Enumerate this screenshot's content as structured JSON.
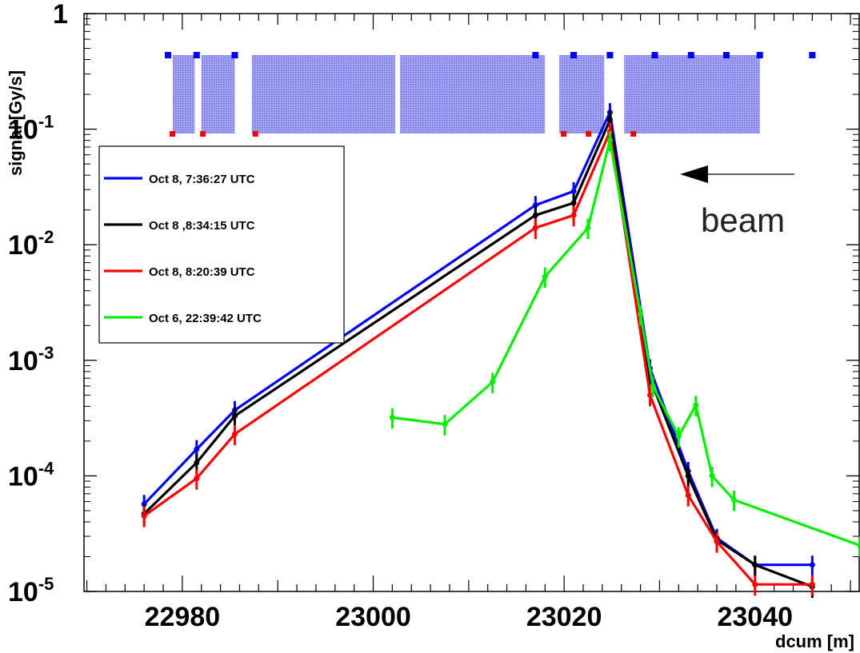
{
  "chart_data": {
    "type": "line",
    "xlabel": "dcum [m]",
    "ylabel": "signal [Gy/s]",
    "x_ticks": [
      "22980",
      "23000",
      "23020",
      "23040"
    ],
    "xlim": [
      22969.7,
      23051
    ],
    "ylim": [
      1e-05,
      1
    ],
    "y_scale": "log",
    "y_ticks": [
      {
        "base": "1",
        "exp": ""
      },
      {
        "base": "10",
        "exp": "-1"
      },
      {
        "base": "10",
        "exp": "-2"
      },
      {
        "base": "10",
        "exp": "-3"
      },
      {
        "base": "10",
        "exp": "-4"
      },
      {
        "base": "10",
        "exp": "-5"
      }
    ],
    "annotation": "beam",
    "legend_position": "left",
    "series": [
      {
        "name": "Oct 8, 7:36:27 UTC",
        "color": "#0000ff",
        "points": [
          [
            22976,
            5.7e-05
          ],
          [
            22981.5,
            0.00017
          ],
          [
            22985.5,
            0.00037
          ],
          [
            23017,
            0.022
          ],
          [
            23021,
            0.029
          ],
          [
            23024.8,
            0.14
          ],
          [
            23029,
            0.00085
          ],
          [
            23033,
            0.00011
          ],
          [
            23036,
            2.9e-05
          ],
          [
            23040,
            1.7e-05
          ],
          [
            23046,
            1.7e-05
          ]
        ]
      },
      {
        "name": "Oct 8 ,8:34:15 UTC",
        "color": "#000000",
        "points": [
          [
            22976,
            4.7e-05
          ],
          [
            22981.5,
            0.00013
          ],
          [
            22985.5,
            0.00033
          ],
          [
            23017,
            0.018
          ],
          [
            23021,
            0.023
          ],
          [
            23024.8,
            0.12
          ],
          [
            23029,
            0.0007
          ],
          [
            23033,
            0.0001
          ],
          [
            23036,
            2.8e-05
          ],
          [
            23040,
            1.7e-05
          ],
          [
            23046,
            1.1e-05
          ]
        ]
      },
      {
        "name": "Oct 8, 8:20:39 UTC",
        "color": "#ff0000",
        "points": [
          [
            22976,
            4.5e-05
          ],
          [
            22981.5,
            9.5e-05
          ],
          [
            22985.5,
            0.00023
          ],
          [
            23017,
            0.014
          ],
          [
            23021,
            0.018
          ],
          [
            23024.8,
            0.095
          ],
          [
            23029,
            0.0005
          ],
          [
            23033,
            6.8e-05
          ],
          [
            23036,
            2.7e-05
          ],
          [
            23040,
            1.15e-05
          ],
          [
            23046,
            1.15e-05
          ]
        ]
      },
      {
        "name": "Oct 6, 22:39:42 UTC",
        "color": "#00ee00",
        "points": [
          [
            23002,
            0.00032
          ],
          [
            23007.5,
            0.00028
          ],
          [
            23012.5,
            0.00065
          ],
          [
            23018,
            0.0053
          ],
          [
            23022.5,
            0.014
          ],
          [
            23024.8,
            0.08
          ],
          [
            23028,
            0.0025
          ],
          [
            23029.3,
            0.0006
          ],
          [
            23032,
            0.00022
          ],
          [
            23033.8,
            0.00041
          ],
          [
            23035.5,
            0.0001
          ],
          [
            23037.8,
            6.2e-05
          ],
          [
            23051,
            2.5e-05
          ]
        ]
      }
    ],
    "blue_markers_x": [
      22978.5,
      22981.5,
      22985.5,
      23017,
      23021,
      23024.8,
      23029.5,
      23033.3,
      23037,
      23040.5,
      23046
    ],
    "red_markers_x": [
      22979,
      22982.2,
      22987.7,
      23020,
      23022.6,
      23027.3
    ],
    "hatched_blocks_x": [
      [
        22979,
        22981.3
      ],
      [
        22982,
        22985.5
      ],
      [
        22987.3,
        23002.3
      ],
      [
        23002.8,
        23018
      ],
      [
        23019.5,
        23024.2
      ],
      [
        23026.3,
        23040.5
      ]
    ],
    "error_bar_fraction": 0.2
  }
}
